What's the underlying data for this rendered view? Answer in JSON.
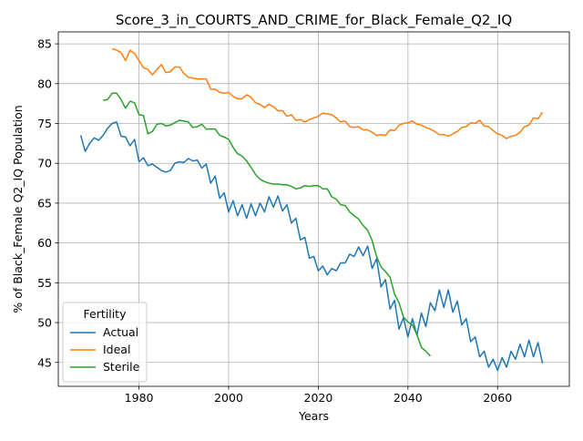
{
  "chart_data": {
    "type": "line",
    "title": "Score_3_in_COURTS_AND_CRIME_for_Black_Female_Q2_IQ",
    "xlabel": "Years",
    "ylabel": "% of Black_Female Q2_IQ Population",
    "xlim": [
      1962,
      2076
    ],
    "ylim": [
      42,
      86.5
    ],
    "xticks": [
      1980,
      2000,
      2020,
      2040,
      2060
    ],
    "yticks": [
      45,
      50,
      55,
      60,
      65,
      70,
      75,
      80,
      85
    ],
    "grid": true,
    "legend": {
      "title": "Fertility",
      "placement": "lower-left"
    },
    "series": [
      {
        "name": "Actual",
        "color": "#1f77b4",
        "points": [
          [
            1967,
            73.5
          ],
          [
            1968,
            71.5
          ],
          [
            1969,
            72.5
          ],
          [
            1970,
            73.2
          ],
          [
            1971,
            72.9
          ],
          [
            1972,
            73.5
          ],
          [
            1973,
            74.4
          ],
          [
            1974,
            75.0
          ],
          [
            1975,
            75.2
          ],
          [
            1976,
            73.4
          ],
          [
            1977,
            73.3
          ],
          [
            1978,
            72.2
          ],
          [
            1979,
            73.0
          ],
          [
            1980,
            70.2
          ],
          [
            1981,
            70.7
          ],
          [
            1982,
            69.7
          ],
          [
            1983,
            69.9
          ],
          [
            1984,
            69.5
          ],
          [
            1985,
            69.1
          ],
          [
            1986,
            68.9
          ],
          [
            1987,
            69.1
          ],
          [
            1988,
            70.0
          ],
          [
            1989,
            70.2
          ],
          [
            1990,
            70.1
          ],
          [
            1991,
            70.6
          ],
          [
            1992,
            70.3
          ],
          [
            1993,
            70.4
          ],
          [
            1994,
            69.4
          ],
          [
            1995,
            69.9
          ],
          [
            1996,
            67.5
          ],
          [
            1997,
            68.4
          ],
          [
            1998,
            65.6
          ],
          [
            1999,
            66.3
          ],
          [
            2000,
            63.9
          ],
          [
            2001,
            65.3
          ],
          [
            2002,
            63.4
          ],
          [
            2003,
            64.8
          ],
          [
            2004,
            63.1
          ],
          [
            2005,
            64.9
          ],
          [
            2006,
            63.4
          ],
          [
            2007,
            65.0
          ],
          [
            2008,
            63.9
          ],
          [
            2009,
            65.8
          ],
          [
            2010,
            64.5
          ],
          [
            2011,
            65.9
          ],
          [
            2012,
            64.0
          ],
          [
            2013,
            64.8
          ],
          [
            2014,
            62.5
          ],
          [
            2015,
            63.1
          ],
          [
            2016,
            60.4
          ],
          [
            2017,
            60.7
          ],
          [
            2018,
            58.1
          ],
          [
            2019,
            58.3
          ],
          [
            2020,
            56.5
          ],
          [
            2021,
            57.1
          ],
          [
            2022,
            56.0
          ],
          [
            2023,
            56.8
          ],
          [
            2024,
            56.5
          ],
          [
            2025,
            57.5
          ],
          [
            2026,
            57.5
          ],
          [
            2027,
            58.6
          ],
          [
            2028,
            58.3
          ],
          [
            2029,
            59.5
          ],
          [
            2030,
            58.4
          ],
          [
            2031,
            59.6
          ],
          [
            2032,
            56.8
          ],
          [
            2033,
            58.0
          ],
          [
            2034,
            54.5
          ],
          [
            2035,
            55.4
          ],
          [
            2036,
            51.7
          ],
          [
            2037,
            52.8
          ],
          [
            2038,
            49.2
          ],
          [
            2039,
            50.6
          ],
          [
            2040,
            48.2
          ],
          [
            2041,
            50.5
          ],
          [
            2042,
            48.4
          ],
          [
            2043,
            51.2
          ],
          [
            2044,
            49.5
          ],
          [
            2045,
            52.5
          ],
          [
            2046,
            51.5
          ],
          [
            2047,
            54.1
          ],
          [
            2048,
            51.9
          ],
          [
            2049,
            54.1
          ],
          [
            2050,
            51.3
          ],
          [
            2051,
            52.7
          ],
          [
            2052,
            49.7
          ],
          [
            2053,
            50.5
          ],
          [
            2054,
            47.6
          ],
          [
            2055,
            48.2
          ],
          [
            2056,
            45.7
          ],
          [
            2057,
            46.4
          ],
          [
            2058,
            44.4
          ],
          [
            2059,
            45.4
          ],
          [
            2060,
            44.0
          ],
          [
            2061,
            45.6
          ],
          [
            2062,
            44.4
          ],
          [
            2063,
            46.4
          ],
          [
            2064,
            45.4
          ],
          [
            2065,
            47.3
          ],
          [
            2066,
            45.7
          ],
          [
            2067,
            47.8
          ],
          [
            2068,
            45.7
          ],
          [
            2069,
            47.5
          ],
          [
            2070,
            44.9
          ]
        ]
      },
      {
        "name": "Ideal",
        "color": "#ff7f0e",
        "points": [
          [
            1974,
            84.4
          ],
          [
            1975,
            84.2
          ],
          [
            1976,
            83.9
          ],
          [
            1977,
            82.9
          ],
          [
            1978,
            84.2
          ],
          [
            1979,
            83.8
          ],
          [
            1980,
            82.9
          ],
          [
            1981,
            82.0
          ],
          [
            1982,
            81.8
          ],
          [
            1983,
            81.1
          ],
          [
            1984,
            81.8
          ],
          [
            1985,
            82.4
          ],
          [
            1986,
            81.4
          ],
          [
            1987,
            81.5
          ],
          [
            1988,
            82.1
          ],
          [
            1989,
            82.1
          ],
          [
            1990,
            81.3
          ],
          [
            1991,
            80.8
          ],
          [
            1992,
            80.7
          ],
          [
            1993,
            80.6
          ],
          [
            1994,
            80.6
          ],
          [
            1995,
            80.6
          ],
          [
            1996,
            79.3
          ],
          [
            1997,
            79.3
          ],
          [
            1998,
            78.9
          ],
          [
            1999,
            78.8
          ],
          [
            2000,
            78.9
          ],
          [
            2001,
            78.4
          ],
          [
            2002,
            78.1
          ],
          [
            2003,
            78.1
          ],
          [
            2004,
            78.6
          ],
          [
            2005,
            78.3
          ],
          [
            2006,
            77.6
          ],
          [
            2007,
            77.4
          ],
          [
            2008,
            77.0
          ],
          [
            2009,
            77.4
          ],
          [
            2010,
            77.1
          ],
          [
            2011,
            76.6
          ],
          [
            2012,
            76.6
          ],
          [
            2013,
            75.9
          ],
          [
            2014,
            76.1
          ],
          [
            2015,
            75.4
          ],
          [
            2016,
            75.5
          ],
          [
            2017,
            75.2
          ],
          [
            2018,
            75.5
          ],
          [
            2019,
            75.7
          ],
          [
            2020,
            75.9
          ],
          [
            2021,
            76.3
          ],
          [
            2022,
            76.2
          ],
          [
            2023,
            76.1
          ],
          [
            2024,
            75.7
          ],
          [
            2025,
            75.2
          ],
          [
            2026,
            75.3
          ],
          [
            2027,
            74.6
          ],
          [
            2028,
            74.5
          ],
          [
            2029,
            74.6
          ],
          [
            2030,
            74.2
          ],
          [
            2031,
            74.2
          ],
          [
            2032,
            73.9
          ],
          [
            2033,
            73.5
          ],
          [
            2034,
            73.6
          ],
          [
            2035,
            73.5
          ],
          [
            2036,
            74.2
          ],
          [
            2037,
            74.1
          ],
          [
            2038,
            74.8
          ],
          [
            2039,
            75.0
          ],
          [
            2040,
            75.1
          ],
          [
            2041,
            75.3
          ],
          [
            2042,
            74.9
          ],
          [
            2043,
            74.8
          ],
          [
            2044,
            74.5
          ],
          [
            2045,
            74.3
          ],
          [
            2046,
            74.0
          ],
          [
            2047,
            73.6
          ],
          [
            2048,
            73.6
          ],
          [
            2049,
            73.4
          ],
          [
            2050,
            73.7
          ],
          [
            2051,
            74.0
          ],
          [
            2052,
            74.5
          ],
          [
            2053,
            74.6
          ],
          [
            2054,
            75.1
          ],
          [
            2055,
            75.0
          ],
          [
            2056,
            75.4
          ],
          [
            2057,
            74.7
          ],
          [
            2058,
            74.6
          ],
          [
            2059,
            74.1
          ],
          [
            2060,
            73.7
          ],
          [
            2061,
            73.5
          ],
          [
            2062,
            73.1
          ],
          [
            2063,
            73.4
          ],
          [
            2064,
            73.5
          ],
          [
            2065,
            73.9
          ],
          [
            2066,
            74.6
          ],
          [
            2067,
            74.8
          ],
          [
            2068,
            75.7
          ],
          [
            2069,
            75.6
          ],
          [
            2070,
            76.4
          ]
        ]
      },
      {
        "name": "Sterile",
        "color": "#2ca02c",
        "points": [
          [
            1972,
            77.9
          ],
          [
            1973,
            78.0
          ],
          [
            1974,
            78.8
          ],
          [
            1975,
            78.8
          ],
          [
            1976,
            78.0
          ],
          [
            1977,
            76.9
          ],
          [
            1978,
            77.8
          ],
          [
            1979,
            77.6
          ],
          [
            1980,
            76.1
          ],
          [
            1981,
            76.0
          ],
          [
            1982,
            73.7
          ],
          [
            1983,
            74.0
          ],
          [
            1984,
            74.9
          ],
          [
            1985,
            75.0
          ],
          [
            1986,
            74.7
          ],
          [
            1987,
            74.8
          ],
          [
            1988,
            75.1
          ],
          [
            1989,
            75.4
          ],
          [
            1990,
            75.3
          ],
          [
            1991,
            75.2
          ],
          [
            1992,
            74.5
          ],
          [
            1993,
            74.6
          ],
          [
            1994,
            74.9
          ],
          [
            1995,
            74.3
          ],
          [
            1996,
            74.3
          ],
          [
            1997,
            74.3
          ],
          [
            1998,
            73.5
          ],
          [
            1999,
            73.3
          ],
          [
            2000,
            73.0
          ],
          [
            2001,
            72.0
          ],
          [
            2002,
            71.2
          ],
          [
            2003,
            70.9
          ],
          [
            2004,
            70.3
          ],
          [
            2005,
            69.5
          ],
          [
            2006,
            68.6
          ],
          [
            2007,
            68.0
          ],
          [
            2008,
            67.7
          ],
          [
            2009,
            67.5
          ],
          [
            2010,
            67.4
          ],
          [
            2011,
            67.4
          ],
          [
            2012,
            67.3
          ],
          [
            2013,
            67.3
          ],
          [
            2014,
            67.1
          ],
          [
            2015,
            66.8
          ],
          [
            2016,
            66.9
          ],
          [
            2017,
            67.2
          ],
          [
            2018,
            67.1
          ],
          [
            2019,
            67.2
          ],
          [
            2020,
            67.2
          ],
          [
            2021,
            66.8
          ],
          [
            2022,
            66.8
          ],
          [
            2023,
            65.8
          ],
          [
            2024,
            65.5
          ],
          [
            2025,
            64.8
          ],
          [
            2026,
            64.7
          ],
          [
            2027,
            63.9
          ],
          [
            2028,
            63.4
          ],
          [
            2029,
            63.0
          ],
          [
            2030,
            62.2
          ],
          [
            2031,
            61.6
          ],
          [
            2032,
            60.3
          ],
          [
            2033,
            58.3
          ],
          [
            2034,
            57.0
          ],
          [
            2035,
            56.4
          ],
          [
            2036,
            55.7
          ],
          [
            2037,
            53.6
          ],
          [
            2038,
            52.5
          ],
          [
            2039,
            50.7
          ],
          [
            2040,
            50.1
          ],
          [
            2041,
            49.7
          ],
          [
            2042,
            48.5
          ],
          [
            2043,
            46.9
          ],
          [
            2044,
            46.4
          ],
          [
            2045,
            45.8
          ]
        ]
      }
    ]
  }
}
